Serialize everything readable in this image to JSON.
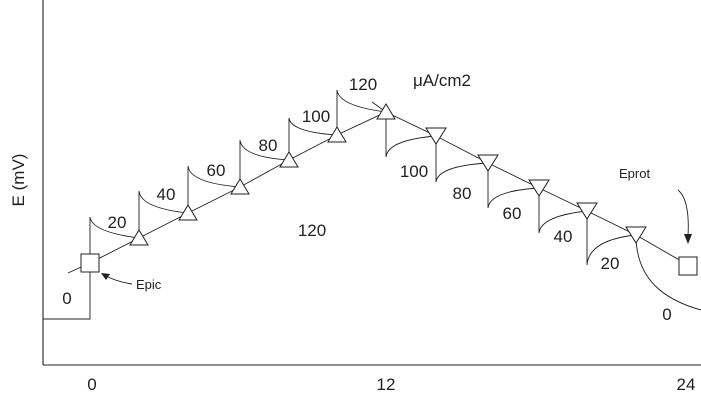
{
  "figure": {
    "y_axis_label": "E (mV)",
    "x_tick_labels": [
      "0",
      "12",
      "24"
    ],
    "current_unit": "μA/cm2",
    "annotations": {
      "epic": "Epic",
      "eprot": "Eprot",
      "current_center": "120"
    },
    "forward_current_labels": [
      "0",
      "20",
      "40",
      "60",
      "80",
      "100",
      "120"
    ],
    "reverse_current_labels": [
      "100",
      "80",
      "60",
      "40",
      "20",
      "0"
    ],
    "markers": {
      "start": "square",
      "forward": "triangle-up",
      "reverse": "triangle-down",
      "end": "square"
    },
    "colors": {
      "ink": "#231f20",
      "background": "#ffffff"
    }
  }
}
